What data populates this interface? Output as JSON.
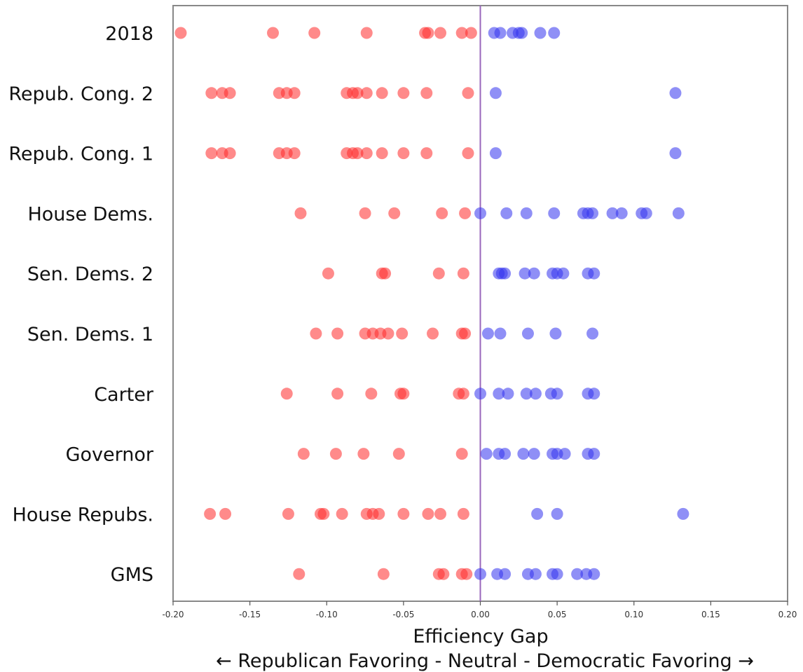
{
  "chart_data": {
    "type": "scatter",
    "xlabel": "Efficiency Gap",
    "subtitle": "← Republican Favoring - Neutral - Democratic Favoring →",
    "xlim": [
      -0.2,
      0.2
    ],
    "xticks": [
      "-0.20",
      "-0.15",
      "-0.10",
      "-0.05",
      "0.00",
      "0.05",
      "0.10",
      "0.15",
      "0.20"
    ],
    "xtick_values": [
      -0.2,
      -0.15,
      -0.1,
      -0.05,
      0.0,
      0.05,
      0.1,
      0.15,
      0.2
    ],
    "neutral_line_x": 0.0,
    "grid": false,
    "colors": {
      "republican": "#ff2a2a",
      "democratic": "#3333ee",
      "neutral_line": "#9966bb",
      "frame": "#888888"
    },
    "categories": [
      "2018",
      "Repub. Cong. 2",
      "Repub. Cong. 1",
      "House Dems.",
      "Sen. Dems. 2",
      "Sen. Dems. 1",
      "Carter",
      "Governor",
      "House Repubs.",
      "GMS"
    ],
    "series": [
      {
        "category": "2018",
        "x": [
          -0.195,
          -0.135,
          -0.108,
          -0.074,
          -0.036,
          -0.034,
          -0.026,
          -0.012,
          -0.006,
          0.009,
          0.013,
          0.021,
          0.025,
          0.027,
          0.039,
          0.048
        ]
      },
      {
        "category": "Repub. Cong. 2",
        "x": [
          -0.175,
          -0.168,
          -0.163,
          -0.131,
          -0.126,
          -0.121,
          -0.087,
          -0.083,
          -0.08,
          -0.074,
          -0.064,
          -0.05,
          -0.035,
          -0.008,
          0.01,
          0.127
        ]
      },
      {
        "category": "Repub. Cong. 1",
        "x": [
          -0.175,
          -0.168,
          -0.163,
          -0.131,
          -0.126,
          -0.121,
          -0.087,
          -0.083,
          -0.08,
          -0.074,
          -0.064,
          -0.05,
          -0.035,
          -0.008,
          0.01,
          0.127
        ]
      },
      {
        "category": "House Dems.",
        "x": [
          -0.117,
          -0.075,
          -0.056,
          -0.025,
          -0.01,
          0.0,
          0.017,
          0.03,
          0.048,
          0.067,
          0.07,
          0.073,
          0.086,
          0.092,
          0.105,
          0.108,
          0.129
        ]
      },
      {
        "category": "Sen. Dems. 2",
        "x": [
          -0.099,
          -0.064,
          -0.062,
          -0.027,
          -0.011,
          0.012,
          0.014,
          0.016,
          0.029,
          0.035,
          0.047,
          0.05,
          0.054,
          0.07,
          0.074
        ]
      },
      {
        "category": "Sen. Dems. 1",
        "x": [
          -0.107,
          -0.093,
          -0.075,
          -0.07,
          -0.065,
          -0.06,
          -0.051,
          -0.031,
          -0.012,
          -0.01,
          0.005,
          0.013,
          0.031,
          0.049,
          0.073
        ]
      },
      {
        "category": "Carter",
        "x": [
          -0.126,
          -0.093,
          -0.071,
          -0.052,
          -0.05,
          -0.014,
          -0.011,
          0.0,
          0.012,
          0.018,
          0.03,
          0.036,
          0.046,
          0.05,
          0.07,
          0.074
        ]
      },
      {
        "category": "Governor",
        "x": [
          -0.115,
          -0.094,
          -0.076,
          -0.053,
          -0.012,
          0.004,
          0.012,
          0.016,
          0.028,
          0.035,
          0.047,
          0.05,
          0.055,
          0.07,
          0.074
        ]
      },
      {
        "category": "House Repubs.",
        "x": [
          -0.176,
          -0.166,
          -0.125,
          -0.104,
          -0.102,
          -0.09,
          -0.074,
          -0.07,
          -0.066,
          -0.05,
          -0.034,
          -0.026,
          -0.011,
          0.037,
          0.05,
          0.132
        ]
      },
      {
        "category": "GMS",
        "x": [
          -0.118,
          -0.063,
          -0.027,
          -0.024,
          -0.012,
          -0.009,
          0.0,
          0.011,
          0.016,
          0.031,
          0.036,
          0.047,
          0.05,
          0.063,
          0.069,
          0.074
        ]
      }
    ]
  }
}
